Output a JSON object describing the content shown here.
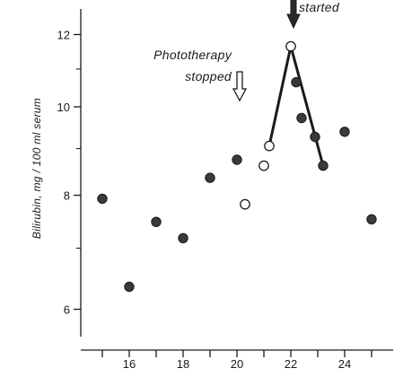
{
  "chart_data": {
    "type": "scatter",
    "ylabel": "Bilirubin,  mg / 100 ml serum",
    "xlabel": "",
    "y_scale": "log",
    "ylim": [
      5.6,
      12.8
    ],
    "xlim": [
      14.2,
      25.8
    ],
    "x_ticks": [
      15,
      16,
      17,
      18,
      19,
      20,
      21,
      22,
      23,
      24,
      25
    ],
    "x_tick_labels": [
      "16",
      "18",
      "20",
      "22",
      "24"
    ],
    "x_tick_label_values": [
      16,
      18,
      20,
      22,
      24
    ],
    "y_tick_labels": [
      "6",
      "8",
      "10",
      "12"
    ],
    "y_tick_label_values": [
      6,
      8,
      10,
      12
    ],
    "y_minor_ticks": [
      7,
      9,
      11
    ],
    "grid": false,
    "series": [
      {
        "marker": "filled",
        "color": "#3a3a3a",
        "points": [
          [
            15.0,
            7.93
          ],
          [
            16.0,
            6.35
          ],
          [
            17.0,
            7.48
          ],
          [
            18.0,
            7.18
          ],
          [
            19.0,
            8.36
          ],
          [
            20.0,
            8.75
          ],
          [
            22.2,
            10.64
          ],
          [
            22.4,
            9.72
          ],
          [
            22.9,
            9.27
          ],
          [
            23.2,
            8.62
          ],
          [
            24.0,
            9.39
          ],
          [
            25.0,
            7.53
          ]
        ]
      },
      {
        "marker": "open",
        "color": "#1a1a1a",
        "points": [
          [
            20.3,
            7.82
          ],
          [
            21.0,
            8.62
          ],
          [
            21.2,
            9.06
          ],
          [
            22.0,
            11.65
          ]
        ]
      }
    ],
    "lines": [
      {
        "color": "#1a1a1a",
        "points": [
          [
            21.2,
            9.06
          ],
          [
            22.0,
            11.65
          ],
          [
            23.2,
            8.62
          ]
        ]
      }
    ],
    "annotations": [
      {
        "text_lines": [
          "Phototherapy",
          "stopped"
        ],
        "arrow": "open",
        "at_x": 20.1
      },
      {
        "text_lines": [
          "started"
        ],
        "arrow": "filled",
        "at_x": 22.1
      }
    ]
  }
}
